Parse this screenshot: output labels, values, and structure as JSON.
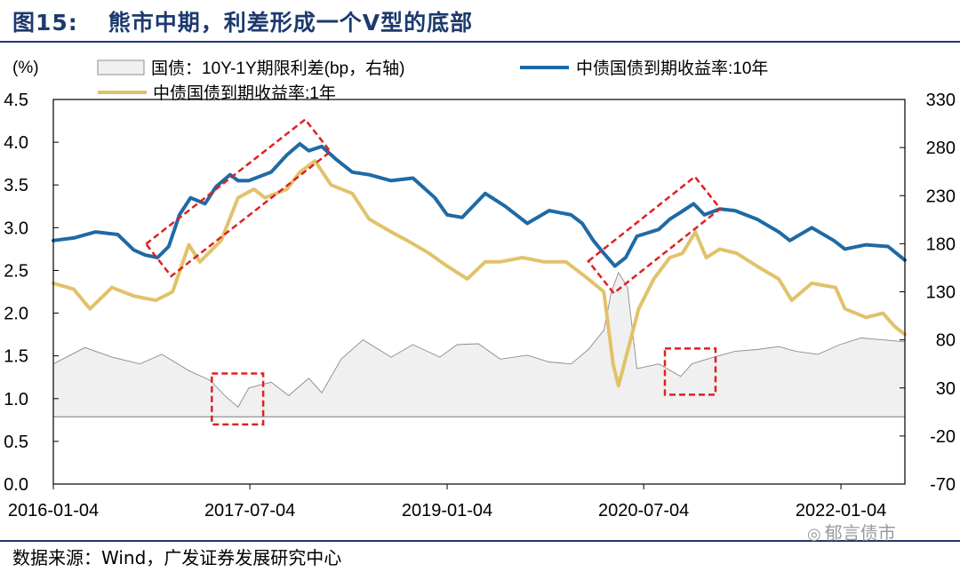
{
  "figure": {
    "number": "图15:",
    "title": "熊市中期，利差形成一个V型的底部",
    "source": "数据来源：Wind，广发证券发展研究中心",
    "watermark": "郁言债市",
    "watermark_icon": "wechat-icon"
  },
  "chart_data": {
    "type": "line",
    "x_ticks": [
      "2016-01-04",
      "2017-07-04",
      "2019-01-04",
      "2020-07-04",
      "2022-01-04"
    ],
    "x_range": [
      "2016-01-04",
      "2022-07-01"
    ],
    "y_left": {
      "label": "(%)",
      "ticks": [
        "4.5",
        "4.0",
        "3.5",
        "3.0",
        "2.5",
        "2.0",
        "1.5",
        "1.0",
        "0.5",
        "0.0"
      ],
      "range": [
        0,
        4.5
      ]
    },
    "y_right": {
      "ticks": [
        "330",
        "280",
        "230",
        "180",
        "130",
        "80",
        "30",
        "-20",
        "-70"
      ],
      "range": [
        -70,
        330
      ]
    },
    "grid": false,
    "legend_position": "top",
    "series": [
      {
        "name": "国债：10Y-1Y期限利差(bp，右轴)",
        "kind": "area",
        "axis": "right",
        "color": "#8c8c8c",
        "fill": "#f0f0f0",
        "points": [
          [
            "2016-01-04",
            55
          ],
          [
            "2016-04-01",
            72
          ],
          [
            "2016-06-15",
            62
          ],
          [
            "2016-09-01",
            55
          ],
          [
            "2016-11-01",
            65
          ],
          [
            "2017-01-15",
            48
          ],
          [
            "2017-03-15",
            38
          ],
          [
            "2017-05-01",
            20
          ],
          [
            "2017-06-01",
            10
          ],
          [
            "2017-07-01",
            30
          ],
          [
            "2017-09-01",
            36
          ],
          [
            "2017-10-20",
            22
          ],
          [
            "2017-12-15",
            40
          ],
          [
            "2018-01-20",
            25
          ],
          [
            "2018-03-15",
            60
          ],
          [
            "2018-05-15",
            80
          ],
          [
            "2018-08-01",
            62
          ],
          [
            "2018-10-01",
            75
          ],
          [
            "2018-12-15",
            62
          ],
          [
            "2019-02-01",
            75
          ],
          [
            "2019-04-01",
            76
          ],
          [
            "2019-06-01",
            60
          ],
          [
            "2019-08-15",
            64
          ],
          [
            "2019-10-15",
            57
          ],
          [
            "2019-12-15",
            55
          ],
          [
            "2020-02-01",
            70
          ],
          [
            "2020-03-15",
            90
          ],
          [
            "2020-04-05",
            130
          ],
          [
            "2020-04-25",
            150
          ],
          [
            "2020-05-20",
            135
          ],
          [
            "2020-06-15",
            50
          ],
          [
            "2020-08-15",
            55
          ],
          [
            "2020-10-15",
            42
          ],
          [
            "2020-11-15",
            55
          ],
          [
            "2021-01-15",
            62
          ],
          [
            "2021-03-15",
            68
          ],
          [
            "2021-05-15",
            70
          ],
          [
            "2021-07-15",
            73
          ],
          [
            "2021-09-01",
            68
          ],
          [
            "2021-11-01",
            65
          ],
          [
            "2022-01-01",
            75
          ],
          [
            "2022-03-01",
            82
          ],
          [
            "2022-05-01",
            80
          ],
          [
            "2022-07-01",
            78
          ]
        ]
      },
      {
        "name": "中债国债到期收益率:10年",
        "kind": "line",
        "axis": "left",
        "color": "#1f6aa5",
        "points": [
          [
            "2016-01-04",
            2.85
          ],
          [
            "2016-03-01",
            2.88
          ],
          [
            "2016-05-01",
            2.95
          ],
          [
            "2016-07-01",
            2.92
          ],
          [
            "2016-08-15",
            2.74
          ],
          [
            "2016-09-15",
            2.68
          ],
          [
            "2016-10-20",
            2.65
          ],
          [
            "2016-11-20",
            2.78
          ],
          [
            "2016-12-20",
            3.15
          ],
          [
            "2017-01-20",
            3.35
          ],
          [
            "2017-03-01",
            3.28
          ],
          [
            "2017-04-01",
            3.48
          ],
          [
            "2017-05-10",
            3.62
          ],
          [
            "2017-06-01",
            3.55
          ],
          [
            "2017-07-01",
            3.55
          ],
          [
            "2017-09-01",
            3.65
          ],
          [
            "2017-10-15",
            3.85
          ],
          [
            "2017-11-20",
            3.98
          ],
          [
            "2017-12-15",
            3.9
          ],
          [
            "2018-01-20",
            3.95
          ],
          [
            "2018-03-01",
            3.8
          ],
          [
            "2018-04-15",
            3.65
          ],
          [
            "2018-06-01",
            3.62
          ],
          [
            "2018-08-01",
            3.55
          ],
          [
            "2018-10-01",
            3.58
          ],
          [
            "2018-12-01",
            3.35
          ],
          [
            "2019-01-04",
            3.15
          ],
          [
            "2019-02-15",
            3.12
          ],
          [
            "2019-04-20",
            3.4
          ],
          [
            "2019-06-15",
            3.25
          ],
          [
            "2019-08-15",
            3.05
          ],
          [
            "2019-10-15",
            3.2
          ],
          [
            "2019-12-15",
            3.15
          ],
          [
            "2020-01-15",
            3.05
          ],
          [
            "2020-02-15",
            2.85
          ],
          [
            "2020-03-15",
            2.7
          ],
          [
            "2020-04-15",
            2.55
          ],
          [
            "2020-05-15",
            2.65
          ],
          [
            "2020-06-15",
            2.9
          ],
          [
            "2020-08-15",
            2.98
          ],
          [
            "2020-09-15",
            3.1
          ],
          [
            "2020-10-15",
            3.18
          ],
          [
            "2020-11-20",
            3.28
          ],
          [
            "2020-12-20",
            3.15
          ],
          [
            "2021-02-01",
            3.22
          ],
          [
            "2021-03-15",
            3.2
          ],
          [
            "2021-05-15",
            3.1
          ],
          [
            "2021-07-15",
            2.95
          ],
          [
            "2021-08-15",
            2.85
          ],
          [
            "2021-10-15",
            3.0
          ],
          [
            "2021-12-15",
            2.85
          ],
          [
            "2022-01-15",
            2.75
          ],
          [
            "2022-03-15",
            2.8
          ],
          [
            "2022-05-15",
            2.78
          ],
          [
            "2022-07-01",
            2.62
          ]
        ]
      },
      {
        "name": "中债国债到期收益率:1年",
        "kind": "line",
        "axis": "left",
        "color": "#e1c26b",
        "points": [
          [
            "2016-01-04",
            2.35
          ],
          [
            "2016-03-01",
            2.28
          ],
          [
            "2016-04-15",
            2.05
          ],
          [
            "2016-06-15",
            2.3
          ],
          [
            "2016-08-15",
            2.2
          ],
          [
            "2016-10-15",
            2.15
          ],
          [
            "2016-12-01",
            2.25
          ],
          [
            "2017-01-15",
            2.8
          ],
          [
            "2017-02-15",
            2.6
          ],
          [
            "2017-04-15",
            2.85
          ],
          [
            "2017-06-01",
            3.35
          ],
          [
            "2017-07-15",
            3.45
          ],
          [
            "2017-08-15",
            3.35
          ],
          [
            "2017-10-15",
            3.45
          ],
          [
            "2017-11-20",
            3.65
          ],
          [
            "2018-01-01",
            3.78
          ],
          [
            "2018-02-15",
            3.5
          ],
          [
            "2018-04-15",
            3.4
          ],
          [
            "2018-06-01",
            3.1
          ],
          [
            "2018-08-01",
            2.95
          ],
          [
            "2018-09-15",
            2.85
          ],
          [
            "2018-11-15",
            2.7
          ],
          [
            "2019-01-04",
            2.55
          ],
          [
            "2019-03-01",
            2.4
          ],
          [
            "2019-04-20",
            2.6
          ],
          [
            "2019-06-01",
            2.6
          ],
          [
            "2019-08-01",
            2.65
          ],
          [
            "2019-10-01",
            2.6
          ],
          [
            "2019-12-01",
            2.6
          ],
          [
            "2020-02-01",
            2.4
          ],
          [
            "2020-03-15",
            2.25
          ],
          [
            "2020-04-10",
            1.4
          ],
          [
            "2020-04-25",
            1.15
          ],
          [
            "2020-05-20",
            1.55
          ],
          [
            "2020-06-20",
            2.05
          ],
          [
            "2020-08-01",
            2.4
          ],
          [
            "2020-09-15",
            2.65
          ],
          [
            "2020-10-20",
            2.7
          ],
          [
            "2020-11-25",
            2.95
          ],
          [
            "2020-12-25",
            2.65
          ],
          [
            "2021-02-01",
            2.75
          ],
          [
            "2021-03-20",
            2.7
          ],
          [
            "2021-05-15",
            2.55
          ],
          [
            "2021-07-15",
            2.4
          ],
          [
            "2021-08-20",
            2.15
          ],
          [
            "2021-10-15",
            2.35
          ],
          [
            "2021-12-20",
            2.3
          ],
          [
            "2022-01-15",
            2.05
          ],
          [
            "2022-03-15",
            1.95
          ],
          [
            "2022-05-01",
            2.0
          ],
          [
            "2022-06-01",
            1.85
          ],
          [
            "2022-07-01",
            1.75
          ]
        ]
      }
    ],
    "annotations": [
      {
        "type": "rect-dashed",
        "color": "#e02020",
        "meaning": "rise-channel-2016-2017"
      },
      {
        "type": "rect-dashed",
        "color": "#e02020",
        "meaning": "rise-channel-2020"
      },
      {
        "type": "rect-dashed",
        "color": "#e02020",
        "meaning": "spread-bottom-2017"
      },
      {
        "type": "rect-dashed",
        "color": "#e02020",
        "meaning": "spread-bottom-2020"
      }
    ]
  }
}
